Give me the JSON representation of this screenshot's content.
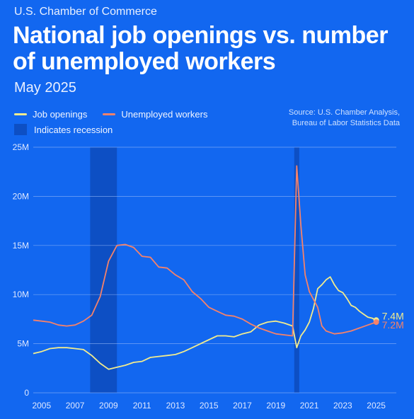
{
  "header": {
    "brand": "U.S. Chamber of Commerce",
    "title": "National job openings vs. number of unemployed workers",
    "subtitle": "May 2025"
  },
  "source": {
    "line1": "Source: U.S. Chamber Analysis,",
    "line2": "Bureau of Labor Statistics Data"
  },
  "colors": {
    "background": "#1267f0",
    "job_openings": "#f2ec8e",
    "unemployed": "#f5826a",
    "recession": "#0d4fc4",
    "grid": "#8fb4f7"
  },
  "chart_data": {
    "type": "line",
    "xlim": [
      2004.5,
      2026.2
    ],
    "ylim": [
      0,
      25
    ],
    "y_unit": "M",
    "yticks": [
      "0",
      "5M",
      "10M",
      "15M",
      "20M",
      "25M"
    ],
    "ytick_values": [
      0,
      5,
      10,
      15,
      20,
      25
    ],
    "xticks": [
      "2005",
      "2007",
      "2009",
      "2011",
      "2013",
      "2015",
      "2017",
      "2019",
      "2021",
      "2023",
      "2025"
    ],
    "xtick_values": [
      2005,
      2007,
      2009,
      2011,
      2013,
      2015,
      2017,
      2019,
      2021,
      2023,
      2025
    ],
    "grid": "horizontal",
    "legend_position": "top-left",
    "legend": {
      "job_openings": "Job openings",
      "unemployed": "Unemployed workers",
      "recession": "Indicates recession"
    },
    "recessions": [
      [
        2007.9,
        2009.5
      ],
      [
        2020.1,
        2020.4
      ]
    ],
    "series": [
      {
        "name": "Job openings",
        "color": "#f2ec8e",
        "end_label": "7.4M",
        "points": [
          [
            2004.5,
            4.0
          ],
          [
            2005.0,
            4.2
          ],
          [
            2005.5,
            4.5
          ],
          [
            2006.0,
            4.6
          ],
          [
            2006.5,
            4.6
          ],
          [
            2007.0,
            4.5
          ],
          [
            2007.5,
            4.4
          ],
          [
            2008.0,
            3.8
          ],
          [
            2008.5,
            3.0
          ],
          [
            2009.0,
            2.4
          ],
          [
            2009.5,
            2.6
          ],
          [
            2010.0,
            2.8
          ],
          [
            2010.5,
            3.1
          ],
          [
            2011.0,
            3.2
          ],
          [
            2011.5,
            3.6
          ],
          [
            2012.0,
            3.7
          ],
          [
            2012.5,
            3.8
          ],
          [
            2013.0,
            3.9
          ],
          [
            2013.5,
            4.2
          ],
          [
            2014.0,
            4.6
          ],
          [
            2014.5,
            5.0
          ],
          [
            2015.0,
            5.4
          ],
          [
            2015.5,
            5.8
          ],
          [
            2016.0,
            5.8
          ],
          [
            2016.5,
            5.7
          ],
          [
            2017.0,
            6.0
          ],
          [
            2017.5,
            6.2
          ],
          [
            2018.0,
            6.9
          ],
          [
            2018.5,
            7.2
          ],
          [
            2019.0,
            7.3
          ],
          [
            2019.5,
            7.1
          ],
          [
            2020.0,
            6.8
          ],
          [
            2020.25,
            4.6
          ],
          [
            2020.5,
            5.8
          ],
          [
            2020.75,
            6.4
          ],
          [
            2021.0,
            7.2
          ],
          [
            2021.25,
            8.6
          ],
          [
            2021.5,
            10.6
          ],
          [
            2021.75,
            11.0
          ],
          [
            2022.0,
            11.5
          ],
          [
            2022.25,
            11.8
          ],
          [
            2022.5,
            11.0
          ],
          [
            2022.75,
            10.4
          ],
          [
            2023.0,
            10.2
          ],
          [
            2023.25,
            9.6
          ],
          [
            2023.5,
            8.9
          ],
          [
            2023.75,
            8.7
          ],
          [
            2024.0,
            8.3
          ],
          [
            2024.25,
            8.0
          ],
          [
            2024.5,
            7.7
          ],
          [
            2024.75,
            7.6
          ],
          [
            2025.0,
            7.4
          ]
        ]
      },
      {
        "name": "Unemployed workers",
        "color": "#f5826a",
        "end_label": "7.2M",
        "points": [
          [
            2004.5,
            7.4
          ],
          [
            2005.0,
            7.3
          ],
          [
            2005.5,
            7.2
          ],
          [
            2006.0,
            6.9
          ],
          [
            2006.5,
            6.8
          ],
          [
            2007.0,
            6.9
          ],
          [
            2007.5,
            7.3
          ],
          [
            2008.0,
            7.9
          ],
          [
            2008.5,
            9.8
          ],
          [
            2009.0,
            13.4
          ],
          [
            2009.5,
            15.0
          ],
          [
            2010.0,
            15.1
          ],
          [
            2010.5,
            14.8
          ],
          [
            2011.0,
            13.9
          ],
          [
            2011.5,
            13.8
          ],
          [
            2012.0,
            12.8
          ],
          [
            2012.5,
            12.7
          ],
          [
            2013.0,
            12.0
          ],
          [
            2013.5,
            11.5
          ],
          [
            2014.0,
            10.3
          ],
          [
            2014.5,
            9.6
          ],
          [
            2015.0,
            8.7
          ],
          [
            2015.5,
            8.3
          ],
          [
            2016.0,
            7.9
          ],
          [
            2016.5,
            7.8
          ],
          [
            2017.0,
            7.5
          ],
          [
            2017.5,
            7.0
          ],
          [
            2018.0,
            6.6
          ],
          [
            2018.5,
            6.3
          ],
          [
            2019.0,
            6.0
          ],
          [
            2019.5,
            5.9
          ],
          [
            2020.0,
            5.8
          ],
          [
            2020.25,
            23.1
          ],
          [
            2020.5,
            17.0
          ],
          [
            2020.75,
            12.0
          ],
          [
            2021.0,
            10.3
          ],
          [
            2021.25,
            9.5
          ],
          [
            2021.5,
            8.7
          ],
          [
            2021.75,
            6.8
          ],
          [
            2022.0,
            6.3
          ],
          [
            2022.5,
            6.0
          ],
          [
            2023.0,
            6.1
          ],
          [
            2023.5,
            6.3
          ],
          [
            2024.0,
            6.6
          ],
          [
            2024.5,
            6.9
          ],
          [
            2025.0,
            7.2
          ]
        ]
      }
    ]
  }
}
